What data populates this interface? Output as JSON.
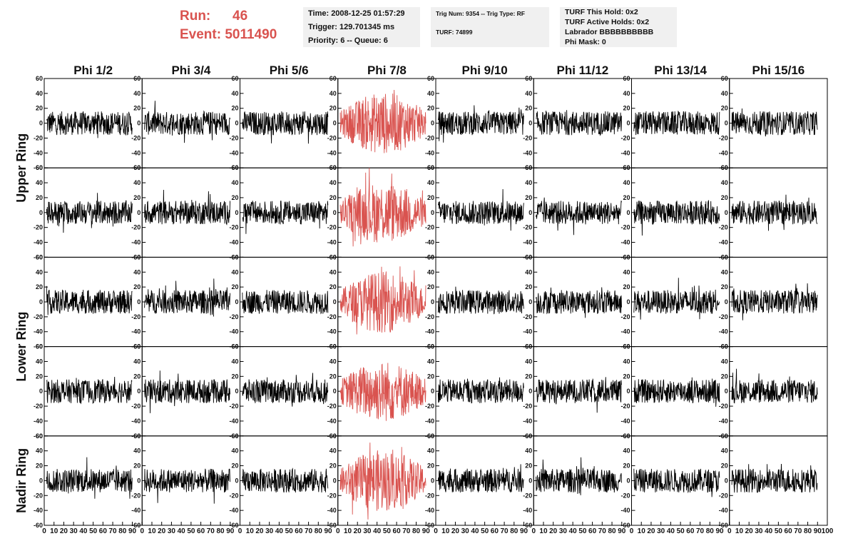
{
  "header": {
    "run_label": "Run:",
    "run_value": "46",
    "event_label": "Event:",
    "event_value": "5011490",
    "time": "Time: 2008-12-25 01:57:29",
    "trigger": "Trigger: 129.701345 ms",
    "priority_queue": "Priority: 6 -- Queue: 6",
    "trig_num_type": "Trig Num: 9354 -- Trig Type: RF",
    "turf": "TURF: 74899",
    "turf_this_hold": "TURF This Hold: 0x2",
    "turf_active_holds": "TURF Active Holds: 0x2",
    "labrador": "Labrador BBBBBBBBBB",
    "phi_mask": "Phi Mask: 0"
  },
  "columns": [
    "Phi 1/2",
    "Phi 3/4",
    "Phi 5/6",
    "Phi 7/8",
    "Phi 9/10",
    "Phi 11/12",
    "Phi 13/14",
    "Phi 15/16"
  ],
  "rings": [
    {
      "name": "Upper Ring",
      "rows": 2
    },
    {
      "name": "Lower Ring",
      "rows": 2
    },
    {
      "name": "Nadir Ring",
      "rows": 1
    }
  ],
  "highlight_column": 3,
  "colors": {
    "trace": "#000000",
    "highlight": "#d9534f",
    "title": "#d9534f"
  },
  "chart_data": {
    "type": "line",
    "ylim": [
      -60,
      60
    ],
    "xlim": [
      0,
      100
    ],
    "y_ticks": [
      "60",
      "40",
      "20",
      "0",
      "-20",
      "-40",
      "-60"
    ],
    "x_ticks": [
      "0",
      "10",
      "20",
      "30",
      "40",
      "50",
      "60",
      "70",
      "80",
      "90",
      "100"
    ],
    "x_tick_labels_printed": [
      "0",
      "10",
      "20",
      "30",
      "40",
      "50",
      "60",
      "70",
      "80",
      "90",
      "100"
    ],
    "typical_amplitude": 20,
    "highlight_amplitude": 40
  }
}
